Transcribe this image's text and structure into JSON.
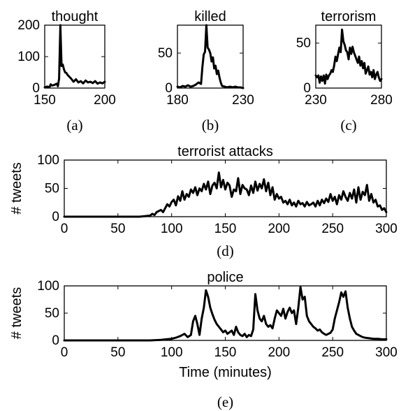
{
  "chart_data": [
    {
      "id": "a",
      "type": "line",
      "title": "thought",
      "caption": "(a)",
      "xlim": [
        150,
        200
      ],
      "ylim": [
        0,
        200
      ],
      "xticks": [
        150,
        200
      ],
      "yticks": [
        0,
        100,
        200
      ],
      "series": [
        {
          "x": [
            150,
            152,
            154,
            155,
            156,
            158,
            160,
            161,
            162,
            163,
            164,
            165,
            166,
            167,
            168,
            169,
            170,
            172,
            174,
            176,
            178,
            180,
            182,
            184,
            186,
            188,
            190,
            192,
            194,
            196,
            198,
            200
          ],
          "y": [
            2,
            5,
            3,
            12,
            8,
            10,
            14,
            6,
            30,
            205,
            70,
            75,
            60,
            50,
            48,
            42,
            38,
            30,
            20,
            28,
            18,
            22,
            15,
            24,
            18,
            20,
            16,
            22,
            14,
            18,
            15,
            20
          ]
        }
      ]
    },
    {
      "id": "b",
      "type": "line",
      "title": "killed",
      "caption": "(b)",
      "xlim": [
        180,
        230
      ],
      "ylim": [
        0,
        90
      ],
      "xticks": [
        180,
        230
      ],
      "yticks": [
        0,
        50
      ],
      "series": [
        {
          "x": [
            180,
            182,
            184,
            186,
            188,
            190,
            192,
            194,
            196,
            198,
            199,
            200,
            201,
            202,
            203,
            204,
            205,
            206,
            207,
            208,
            209,
            210,
            211,
            212,
            213,
            214,
            216,
            218,
            220,
            222,
            224,
            226,
            228,
            230
          ],
          "y": [
            2,
            1,
            3,
            2,
            4,
            2,
            3,
            5,
            8,
            6,
            30,
            48,
            52,
            95,
            58,
            55,
            50,
            38,
            44,
            28,
            32,
            20,
            25,
            15,
            8,
            3,
            2,
            1,
            2,
            1,
            2,
            1,
            1,
            0
          ]
        }
      ]
    },
    {
      "id": "c",
      "type": "line",
      "title": "terrorism",
      "caption": "(c)",
      "xlim": [
        230,
        280
      ],
      "ylim": [
        0,
        70
      ],
      "xticks": [
        230,
        280
      ],
      "yticks": [
        0,
        50
      ],
      "series": [
        {
          "x": [
            230,
            231,
            232,
            233,
            234,
            235,
            236,
            237,
            238,
            239,
            240,
            241,
            242,
            243,
            244,
            245,
            246,
            247,
            248,
            249,
            250,
            251,
            252,
            253,
            254,
            255,
            256,
            257,
            258,
            259,
            260,
            261,
            262,
            263,
            264,
            265,
            266,
            267,
            268,
            269,
            270,
            271,
            272,
            273,
            274,
            275,
            276,
            277,
            278,
            279,
            280
          ],
          "y": [
            14,
            12,
            14,
            6,
            13,
            8,
            14,
            5,
            15,
            10,
            14,
            16,
            20,
            18,
            25,
            35,
            30,
            38,
            45,
            40,
            65,
            52,
            48,
            42,
            40,
            32,
            45,
            38,
            46,
            40,
            36,
            32,
            28,
            35,
            25,
            30,
            22,
            28,
            16,
            20,
            24,
            15,
            18,
            12,
            20,
            10,
            15,
            18,
            12,
            8,
            10
          ]
        }
      ]
    },
    {
      "id": "d",
      "type": "line",
      "title": "terrorist attacks",
      "caption": "(d)",
      "ylabel": "# tweets",
      "xlim": [
        0,
        300
      ],
      "ylim": [
        0,
        100
      ],
      "xticks": [
        0,
        50,
        100,
        150,
        200,
        250,
        300
      ],
      "yticks": [
        0,
        50,
        100
      ],
      "series": [
        {
          "x": [
            0,
            10,
            20,
            30,
            40,
            50,
            60,
            70,
            75,
            80,
            82,
            84,
            86,
            88,
            90,
            92,
            94,
            96,
            98,
            100,
            102,
            104,
            106,
            108,
            110,
            112,
            114,
            116,
            118,
            120,
            122,
            124,
            126,
            128,
            130,
            132,
            134,
            136,
            138,
            140,
            142,
            144,
            146,
            148,
            150,
            152,
            154,
            156,
            158,
            160,
            162,
            164,
            166,
            168,
            170,
            172,
            174,
            176,
            178,
            180,
            182,
            184,
            186,
            188,
            190,
            192,
            194,
            196,
            198,
            200,
            202,
            204,
            206,
            208,
            210,
            212,
            214,
            216,
            218,
            220,
            222,
            224,
            226,
            228,
            230,
            232,
            234,
            236,
            238,
            240,
            242,
            244,
            246,
            248,
            250,
            252,
            254,
            256,
            258,
            260,
            262,
            264,
            266,
            268,
            270,
            272,
            274,
            276,
            278,
            280,
            282,
            284,
            286,
            288,
            290,
            292,
            294,
            296,
            298,
            300
          ],
          "y": [
            0,
            0,
            0,
            0,
            0,
            0,
            0,
            0,
            1,
            2,
            5,
            3,
            8,
            10,
            12,
            8,
            15,
            22,
            18,
            26,
            30,
            20,
            36,
            28,
            45,
            30,
            40,
            35,
            48,
            42,
            52,
            38,
            50,
            45,
            58,
            48,
            62,
            40,
            55,
            60,
            50,
            78,
            52,
            65,
            48,
            60,
            55,
            35,
            48,
            45,
            68,
            40,
            56,
            50,
            48,
            38,
            55,
            42,
            62,
            46,
            58,
            50,
            66,
            45,
            60,
            38,
            52,
            30,
            40,
            32,
            35,
            25,
            28,
            22,
            30,
            20,
            25,
            18,
            28,
            22,
            24,
            18,
            26,
            20,
            22,
            25,
            18,
            28,
            20,
            30,
            24,
            32,
            26,
            40,
            28,
            35,
            22,
            38,
            30,
            45,
            35,
            28,
            42,
            32,
            48,
            25,
            52,
            30,
            44,
            38,
            56,
            28,
            40,
            25,
            30,
            18,
            20,
            12,
            15,
            8
          ]
        }
      ]
    },
    {
      "id": "e",
      "type": "line",
      "title": "police",
      "caption": "(e)",
      "ylabel": "# tweets",
      "xlabel": "Time (minutes)",
      "xlim": [
        0,
        300
      ],
      "ylim": [
        0,
        100
      ],
      "xticks": [
        0,
        50,
        100,
        150,
        200,
        250,
        300
      ],
      "yticks": [
        0,
        50,
        100
      ],
      "series": [
        {
          "x": [
            0,
            20,
            40,
            60,
            80,
            90,
            95,
            100,
            104,
            108,
            112,
            115,
            118,
            120,
            122,
            124,
            126,
            128,
            130,
            132,
            134,
            136,
            138,
            140,
            142,
            144,
            146,
            148,
            150,
            152,
            154,
            156,
            158,
            160,
            162,
            164,
            166,
            168,
            170,
            172,
            174,
            176,
            178,
            180,
            182,
            184,
            186,
            188,
            190,
            192,
            194,
            196,
            198,
            200,
            202,
            204,
            206,
            208,
            210,
            212,
            214,
            216,
            218,
            220,
            222,
            224,
            226,
            228,
            230,
            232,
            234,
            236,
            238,
            240,
            242,
            244,
            246,
            248,
            250,
            252,
            254,
            256,
            258,
            260,
            262,
            264,
            266,
            268,
            270,
            272,
            274,
            276,
            278,
            280,
            284,
            288,
            292,
            296,
            300
          ],
          "y": [
            0,
            0,
            0,
            0,
            0,
            1,
            2,
            3,
            5,
            8,
            12,
            6,
            10,
            35,
            45,
            30,
            10,
            40,
            60,
            92,
            80,
            60,
            48,
            38,
            30,
            25,
            20,
            15,
            18,
            12,
            15,
            18,
            10,
            25,
            15,
            10,
            8,
            12,
            6,
            10,
            8,
            20,
            85,
            55,
            40,
            35,
            45,
            30,
            25,
            28,
            22,
            40,
            55,
            50,
            45,
            58,
            40,
            52,
            60,
            50,
            55,
            30,
            60,
            98,
            75,
            80,
            45,
            35,
            30,
            25,
            22,
            18,
            20,
            15,
            12,
            10,
            12,
            14,
            20,
            40,
            55,
            70,
            88,
            80,
            90,
            60,
            40,
            25,
            18,
            12,
            10,
            8,
            6,
            5,
            4,
            3,
            3,
            2,
            2
          ]
        }
      ]
    }
  ]
}
